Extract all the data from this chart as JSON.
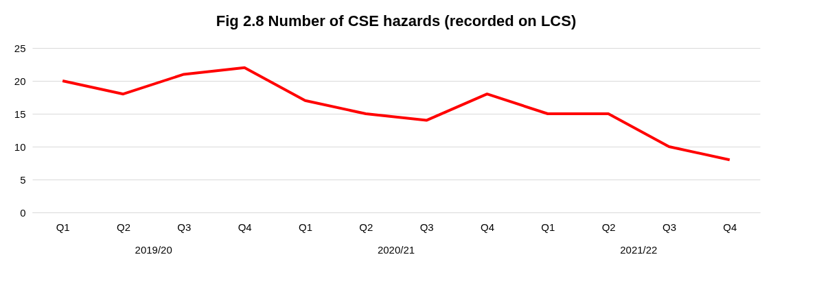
{
  "chart_data": {
    "type": "line",
    "title": "Fig 2.8 Number of CSE hazards (recorded on LCS)",
    "categories": [
      "Q1",
      "Q2",
      "Q3",
      "Q4",
      "Q1",
      "Q2",
      "Q3",
      "Q4",
      "Q1",
      "Q2",
      "Q3",
      "Q4"
    ],
    "series": [
      {
        "color": "#ff0000",
        "values": [
          20,
          18,
          21,
          22,
          17,
          15,
          14,
          18,
          15,
          15,
          10,
          8
        ]
      }
    ],
    "ylim": [
      0,
      25
    ],
    "yticks": [
      0,
      5,
      10,
      15,
      20,
      25
    ],
    "grid": "y",
    "marker": "none",
    "line_style": "solid",
    "annotations": [
      "2019/20",
      "2020/21",
      "2021/22"
    ]
  }
}
